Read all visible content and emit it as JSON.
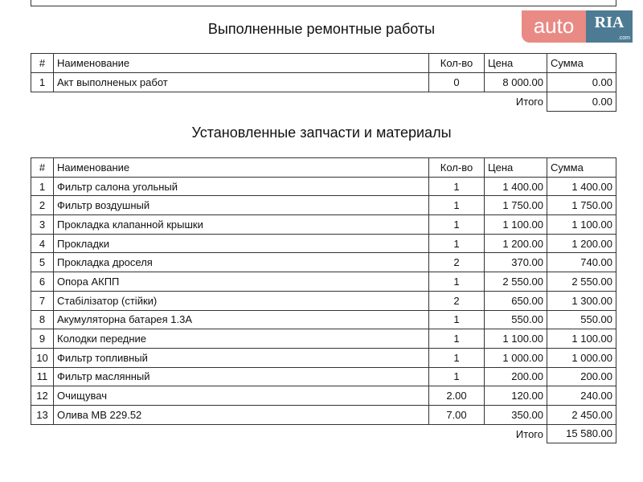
{
  "logo": {
    "auto": "auto",
    "ria": "RIA",
    "com": ".com"
  },
  "works": {
    "title": "Выполненные ремонтные работы",
    "headers": [
      "#",
      "Наименование",
      "Кол-во",
      "Цена",
      "Сумма"
    ],
    "rows": [
      [
        "1",
        "Акт выполненых работ",
        "0",
        "8 000.00",
        "0.00"
      ]
    ],
    "total_label": "Итого",
    "total": "0.00"
  },
  "parts": {
    "title": "Установленные запчасти и материалы",
    "headers": [
      "#",
      "Наименование",
      "Кол-во",
      "Цена",
      "Сумма"
    ],
    "rows": [
      [
        "1",
        "Фильтр салона угольный",
        "1",
        "1 400.00",
        "1 400.00"
      ],
      [
        "2",
        "Фильтр воздушный",
        "1",
        "1 750.00",
        "1 750.00"
      ],
      [
        "3",
        "Прокладка клапанной крышки",
        "1",
        "1 100.00",
        "1 100.00"
      ],
      [
        "4",
        "Прокладки",
        "1",
        "1 200.00",
        "1 200.00"
      ],
      [
        "5",
        "Прокладка дроселя",
        "2",
        "370.00",
        "740.00"
      ],
      [
        "6",
        "Опора АКПП",
        "1",
        "2 550.00",
        "2 550.00"
      ],
      [
        "7",
        "Стабілізатор (стійки)",
        "2",
        "650.00",
        "1 300.00"
      ],
      [
        "8",
        "Акумуляторна батарея 1.3А",
        "1",
        "550.00",
        "550.00"
      ],
      [
        "9",
        "Колодки передние",
        "1",
        "1 100.00",
        "1 100.00"
      ],
      [
        "10",
        "Фильтр топливный",
        "1",
        "1 000.00",
        "1 000.00"
      ],
      [
        "11",
        "Фильтр маслянный",
        "1",
        "200.00",
        "200.00"
      ],
      [
        "12",
        "Очищувач",
        "2.00",
        "120.00",
        "240.00"
      ],
      [
        "13",
        "Олива MB 229.52",
        "7.00",
        "350.00",
        "2 450.00"
      ]
    ],
    "total_label": "Итого",
    "total": "15 580.00"
  }
}
